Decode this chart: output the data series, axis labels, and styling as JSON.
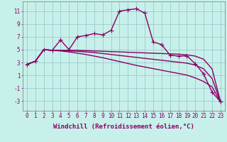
{
  "background_color": "#c8f0ea",
  "grid_color": "#99cccc",
  "line_color": "#880066",
  "line_width": 1.0,
  "marker": "+",
  "marker_size": 4,
  "marker_linewidth": 0.8,
  "xlabel": "Windchill (Refroidissement éolien,°C)",
  "xlabel_fontsize": 6.5,
  "tick_fontsize": 5.5,
  "xlim": [
    -0.5,
    23.5
  ],
  "ylim": [
    -4.5,
    12.5
  ],
  "yticks": [
    -3,
    -1,
    1,
    3,
    5,
    7,
    9,
    11
  ],
  "xticks": [
    0,
    1,
    2,
    3,
    4,
    5,
    6,
    7,
    8,
    9,
    10,
    11,
    12,
    13,
    14,
    15,
    16,
    17,
    18,
    19,
    20,
    21,
    22,
    23
  ],
  "series1_markers": true,
  "series": [
    [
      2.7,
      3.2,
      5.0,
      4.9,
      6.5,
      5.0,
      7.0,
      7.2,
      7.5,
      7.3,
      8.0,
      11.0,
      11.2,
      11.35,
      10.7,
      6.2,
      5.8,
      4.15,
      4.0,
      4.05,
      2.8,
      1.2,
      -1.6,
      -3.1
    ],
    [
      2.7,
      3.2,
      5.0,
      4.9,
      4.9,
      4.9,
      4.9,
      4.85,
      4.8,
      4.75,
      4.7,
      4.65,
      4.6,
      4.55,
      4.5,
      4.45,
      4.4,
      4.35,
      4.3,
      4.2,
      4.0,
      3.5,
      2.0,
      -3.1
    ],
    [
      2.7,
      3.2,
      5.0,
      4.9,
      4.85,
      4.8,
      4.75,
      4.65,
      4.55,
      4.4,
      4.25,
      4.1,
      3.95,
      3.8,
      3.65,
      3.5,
      3.35,
      3.2,
      3.05,
      2.9,
      2.6,
      2.0,
      0.5,
      -3.1
    ],
    [
      2.7,
      3.2,
      5.0,
      4.9,
      4.8,
      4.65,
      4.45,
      4.25,
      4.0,
      3.75,
      3.45,
      3.15,
      2.85,
      2.55,
      2.3,
      2.05,
      1.8,
      1.55,
      1.3,
      1.05,
      0.6,
      0.05,
      -0.8,
      -3.1
    ]
  ]
}
